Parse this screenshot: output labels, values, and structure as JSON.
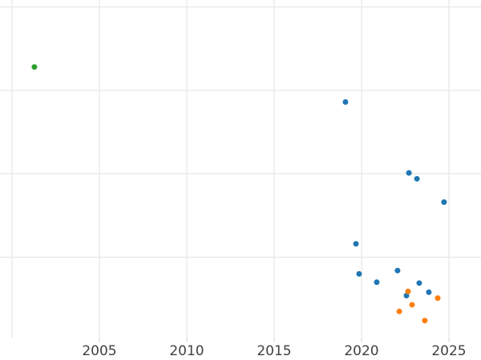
{
  "figure": {
    "background_color": "#ffffff",
    "gridline_color": "#e8e8e8",
    "tick_color": "#d8d8d8",
    "tick_label_color": "#404040"
  },
  "chart_data": {
    "type": "scatter",
    "title": "",
    "xlabel": "",
    "ylabel": "",
    "grid": true,
    "legend": "none",
    "x_axis": {
      "tick_labels": [
        "2005",
        "2010",
        "2015",
        "2020",
        "2025"
      ],
      "tick_years": [
        2005,
        2010,
        2015,
        2020,
        2025
      ],
      "gridline_years": [
        2000,
        2005,
        2010,
        2015,
        2020,
        2025
      ],
      "range_estimate": [
        1999.3,
        2026.8
      ]
    },
    "y_axis": {
      "tick_labels_visible": false,
      "gridline_values": [
        1,
        2,
        3,
        4
      ],
      "note": "y tick labels not visible in image; values in gridline units (1 unit = 1 gridline spacing, 0 at bottom)",
      "range_estimate": [
        0.03,
        4.08
      ]
    },
    "series": [
      {
        "name": "green",
        "color": "#2ca02c",
        "points": [
          {
            "x": 2001.28,
            "y": 3.28
          }
        ]
      },
      {
        "name": "blue",
        "color": "#1f77b4",
        "points": [
          {
            "x": 2019.08,
            "y": 2.86
          },
          {
            "x": 2022.71,
            "y": 2.01
          },
          {
            "x": 2023.17,
            "y": 1.94
          },
          {
            "x": 2024.72,
            "y": 1.66
          },
          {
            "x": 2019.68,
            "y": 1.16
          },
          {
            "x": 2019.86,
            "y": 0.8
          },
          {
            "x": 2020.87,
            "y": 0.7
          },
          {
            "x": 2022.06,
            "y": 0.84
          },
          {
            "x": 2023.3,
            "y": 0.69
          },
          {
            "x": 2023.85,
            "y": 0.58
          },
          {
            "x": 2022.57,
            "y": 0.54
          }
        ]
      },
      {
        "name": "orange",
        "color": "#ff7f0e",
        "points": [
          {
            "x": 2022.66,
            "y": 0.59
          },
          {
            "x": 2022.89,
            "y": 0.43
          },
          {
            "x": 2022.16,
            "y": 0.35
          },
          {
            "x": 2024.36,
            "y": 0.51
          },
          {
            "x": 2023.62,
            "y": 0.24
          }
        ]
      }
    ],
    "marker": {
      "shape": "circle",
      "radius_px": 3.5
    }
  }
}
